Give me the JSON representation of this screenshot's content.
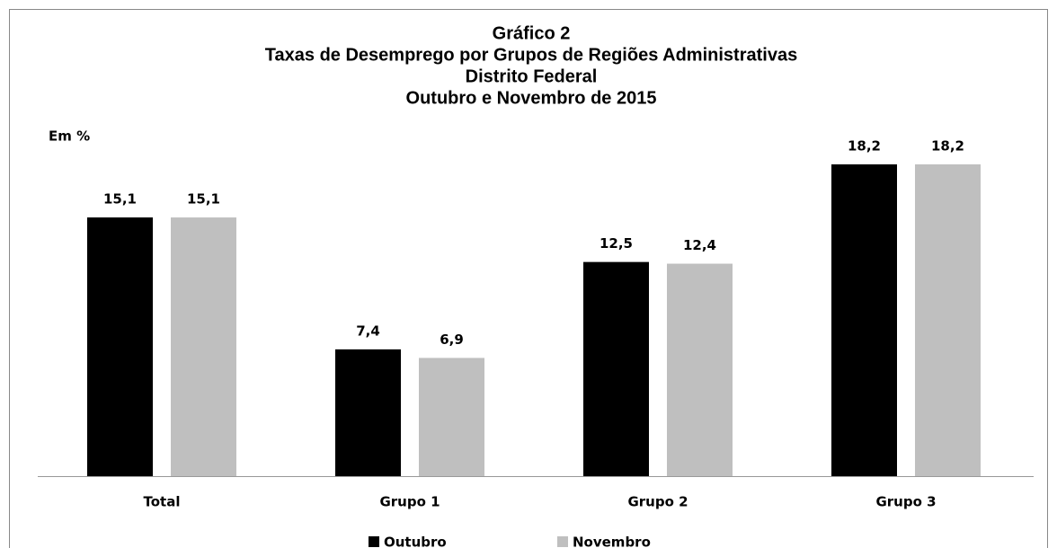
{
  "chart_data": {
    "type": "bar",
    "title": [
      "Gráfico 2",
      "Taxas de Desemprego por Grupos de Regiões Administrativas",
      "Distrito Federal",
      "Outubro e Novembro de 2015"
    ],
    "unit_label": "Em %",
    "categories": [
      "Total",
      "Grupo 1",
      "Grupo 2",
      "Grupo 3"
    ],
    "series": [
      {
        "name": "Outubro",
        "color": "#000000",
        "values": [
          15.1,
          7.4,
          12.5,
          18.2
        ],
        "value_labels": [
          "15,1",
          "7,4",
          "12,5",
          "18,2"
        ]
      },
      {
        "name": "Novembro",
        "color": "#bfbfbf",
        "values": [
          15.1,
          6.9,
          12.4,
          18.2
        ],
        "value_labels": [
          "15,1",
          "6,9",
          "12,4",
          "18,2"
        ]
      }
    ],
    "legend": "bottom"
  }
}
